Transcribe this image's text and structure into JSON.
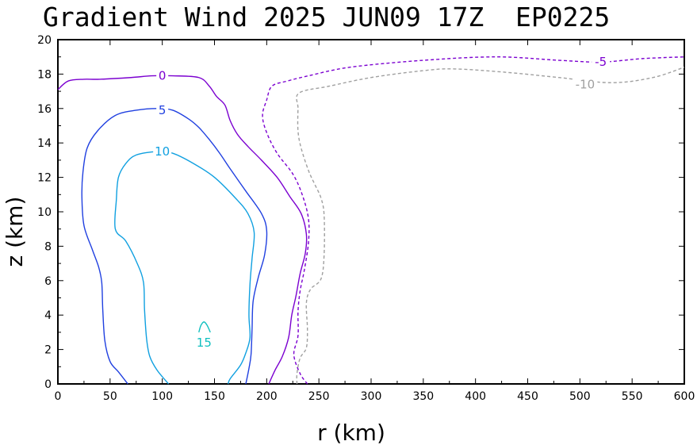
{
  "title": "Gradient Wind 2025 JUN09 17Z  EP0225",
  "chart_data": {
    "type": "contour",
    "xlabel": "r (km)",
    "ylabel": "z (km)",
    "xlim": [
      0,
      600
    ],
    "ylim": [
      0,
      20
    ],
    "xticks": [
      0,
      50,
      100,
      150,
      200,
      250,
      300,
      350,
      400,
      450,
      500,
      550,
      600
    ],
    "yticks": [
      0,
      2,
      4,
      6,
      8,
      10,
      12,
      14,
      16,
      18,
      20
    ],
    "contours": [
      {
        "level": 0,
        "label": "0",
        "color": "#7b00d0",
        "dash": "solid",
        "points": [
          [
            0,
            17.1
          ],
          [
            10,
            17.6
          ],
          [
            25,
            17.7
          ],
          [
            40,
            17.7
          ],
          [
            70,
            17.8
          ],
          [
            90,
            17.9
          ],
          [
            110,
            17.9
          ],
          [
            135,
            17.8
          ],
          [
            145,
            17.3
          ],
          [
            152,
            16.7
          ],
          [
            160,
            16.2
          ],
          [
            165,
            15.3
          ],
          [
            172,
            14.5
          ],
          [
            182,
            13.8
          ],
          [
            195,
            13.0
          ],
          [
            210,
            12.0
          ],
          [
            222,
            10.9
          ],
          [
            233,
            9.9
          ],
          [
            238,
            8.7
          ],
          [
            237,
            7.6
          ],
          [
            232,
            6.4
          ],
          [
            228,
            5.1
          ],
          [
            224,
            4.0
          ],
          [
            221,
            2.7
          ],
          [
            215,
            1.6
          ],
          [
            208,
            0.8
          ],
          [
            202,
            0
          ]
        ]
      },
      {
        "level": -5,
        "label": "-5",
        "color": "#7b00d0",
        "dash": "dashed",
        "points": [
          [
            239,
            0
          ],
          [
            232,
            0.6
          ],
          [
            226,
            1.7
          ],
          [
            230,
            2.8
          ],
          [
            230,
            4.2
          ],
          [
            232,
            5.4
          ],
          [
            236,
            6.6
          ],
          [
            240,
            8.2
          ],
          [
            240,
            9.6
          ],
          [
            234,
            11.0
          ],
          [
            225,
            12.2
          ],
          [
            210,
            13.4
          ],
          [
            200,
            14.6
          ],
          [
            196,
            15.6
          ],
          [
            200,
            16.5
          ],
          [
            205,
            17.3
          ],
          [
            220,
            17.6
          ],
          [
            240,
            17.9
          ],
          [
            280,
            18.4
          ],
          [
            350,
            18.8
          ],
          [
            420,
            19.0
          ],
          [
            480,
            18.8
          ],
          [
            520,
            18.7
          ],
          [
            560,
            18.9
          ],
          [
            600,
            19.0
          ]
        ]
      },
      {
        "level": -10,
        "label": "-10",
        "color": "#a0a0a0",
        "dash": "dashed",
        "points": [
          [
            229,
            0
          ],
          [
            229,
            0.6
          ],
          [
            232,
            1.5
          ],
          [
            238,
            2.1
          ],
          [
            239,
            3.2
          ],
          [
            238,
            4.7
          ],
          [
            242,
            5.5
          ],
          [
            252,
            6.1
          ],
          [
            255,
            7.5
          ],
          [
            255,
            9.8
          ],
          [
            252,
            10.8
          ],
          [
            246,
            11.6
          ],
          [
            240,
            12.4
          ],
          [
            233,
            13.7
          ],
          [
            230,
            14.7
          ],
          [
            230,
            16.0
          ],
          [
            231,
            16.9
          ],
          [
            260,
            17.3
          ],
          [
            300,
            17.8
          ],
          [
            350,
            18.2
          ],
          [
            380,
            18.3
          ],
          [
            430,
            18.1
          ],
          [
            480,
            17.8
          ],
          [
            530,
            17.5
          ],
          [
            570,
            17.8
          ],
          [
            600,
            18.4
          ]
        ]
      },
      {
        "level": 5,
        "label": "5",
        "color": "#2040e0",
        "dash": "solid",
        "points": [
          [
            67,
            0
          ],
          [
            58,
            0.7
          ],
          [
            50,
            1.3
          ],
          [
            45,
            2.5
          ],
          [
            43,
            4.3
          ],
          [
            42,
            5.9
          ],
          [
            39,
            6.8
          ],
          [
            33,
            7.8
          ],
          [
            25,
            9.2
          ],
          [
            23,
            10.9
          ],
          [
            24,
            12.3
          ],
          [
            28,
            13.7
          ],
          [
            38,
            14.7
          ],
          [
            55,
            15.6
          ],
          [
            75,
            15.9
          ],
          [
            95,
            16.0
          ],
          [
            110,
            15.9
          ],
          [
            125,
            15.4
          ],
          [
            135,
            14.9
          ],
          [
            145,
            14.2
          ],
          [
            155,
            13.4
          ],
          [
            165,
            12.5
          ],
          [
            180,
            11.2
          ],
          [
            195,
            9.9
          ],
          [
            200,
            8.9
          ],
          [
            198,
            7.5
          ],
          [
            192,
            6.2
          ],
          [
            187,
            4.8
          ],
          [
            186,
            3.2
          ],
          [
            185,
            1.7
          ],
          [
            183,
            0.9
          ],
          [
            180,
            0
          ]
        ]
      },
      {
        "level": 10,
        "label": "10",
        "color": "#10a0e0",
        "dash": "solid",
        "points": [
          [
            106,
            0
          ],
          [
            95,
            0.8
          ],
          [
            88,
            1.6
          ],
          [
            85,
            2.6
          ],
          [
            83,
            4.3
          ],
          [
            82,
            5.9
          ],
          [
            76,
            7.0
          ],
          [
            65,
            8.3
          ],
          [
            55,
            9.0
          ],
          [
            56,
            10.7
          ],
          [
            58,
            12.0
          ],
          [
            65,
            12.8
          ],
          [
            75,
            13.3
          ],
          [
            95,
            13.5
          ],
          [
            110,
            13.4
          ],
          [
            130,
            12.8
          ],
          [
            150,
            12.0
          ],
          [
            170,
            10.8
          ],
          [
            182,
            9.9
          ],
          [
            188,
            8.8
          ],
          [
            186,
            7.3
          ],
          [
            184,
            5.8
          ],
          [
            183,
            4.0
          ],
          [
            184,
            2.7
          ],
          [
            180,
            1.8
          ],
          [
            175,
            1.1
          ],
          [
            165,
            0.3
          ],
          [
            163,
            0
          ]
        ]
      },
      {
        "level": 15,
        "label": "15",
        "color": "#10c0c0",
        "dash": "solid",
        "points": [
          [
            135,
            3.0
          ],
          [
            137,
            3.4
          ],
          [
            140,
            3.6
          ],
          [
            143,
            3.4
          ],
          [
            146,
            3.0
          ]
        ]
      }
    ],
    "contour_labels": [
      {
        "text": "0",
        "x": 100,
        "y": 17.9,
        "color": "#7b00d0"
      },
      {
        "text": "5",
        "x": 100,
        "y": 15.9,
        "color": "#2040e0"
      },
      {
        "text": "10",
        "x": 100,
        "y": 13.5,
        "color": "#10a0e0"
      },
      {
        "text": "15",
        "x": 140,
        "y": 2.4,
        "color": "#10c0c0"
      },
      {
        "text": "-5",
        "x": 520,
        "y": 18.7,
        "color": "#7b00d0"
      },
      {
        "text": "-10",
        "x": 505,
        "y": 17.4,
        "color": "#a0a0a0"
      }
    ]
  }
}
